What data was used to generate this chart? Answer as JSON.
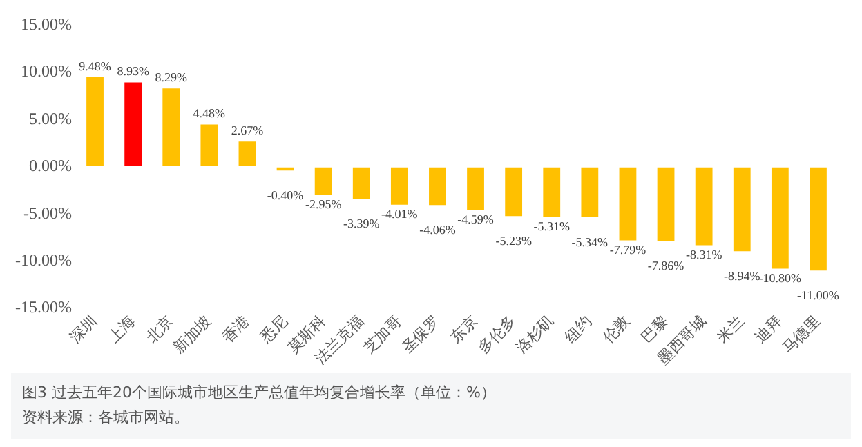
{
  "chart_data": {
    "type": "bar",
    "categories": [
      "深圳",
      "上海",
      "北京",
      "新加坡",
      "香港",
      "悉尼",
      "莫斯科",
      "法兰克福",
      "芝加哥",
      "圣保罗",
      "东京",
      "多伦多",
      "洛杉矶",
      "纽约",
      "伦敦",
      "巴黎",
      "墨西哥城",
      "米兰",
      "迪拜",
      "马德里"
    ],
    "values": [
      9.48,
      8.93,
      8.29,
      4.48,
      2.67,
      -0.4,
      -2.95,
      -3.39,
      -4.01,
      -4.06,
      -4.59,
      -5.23,
      -5.31,
      -5.34,
      -7.79,
      -7.86,
      -8.31,
      -8.94,
      -10.8,
      -11.0
    ],
    "colors": [
      "#ffc000",
      "#ff0000",
      "#ffc000",
      "#ffc000",
      "#ffc000",
      "#ffc000",
      "#ffc000",
      "#ffc000",
      "#ffc000",
      "#ffc000",
      "#ffc000",
      "#ffc000",
      "#ffc000",
      "#ffc000",
      "#ffc000",
      "#ffc000",
      "#ffc000",
      "#ffc000",
      "#ffc000",
      "#ffc000"
    ],
    "value_labels": [
      "9.48%",
      "8.93%",
      "8.29%",
      "4.48%",
      "2.67%",
      "-0.40%",
      "-2.95%",
      "-3.39%",
      "-4.01%",
      "-4.06%",
      "-4.59%",
      "-5.23%",
      "-5.31%",
      "-5.34%",
      "-7.79%",
      "-7.86%",
      "-8.31%",
      "-8.94%",
      "-10.80%",
      "-11.00%"
    ],
    "ylim": [
      -15,
      15
    ],
    "yticks": [
      {
        "value": -15,
        "label": "-15.00%"
      },
      {
        "value": -10,
        "label": "-10.00%"
      },
      {
        "value": -5,
        "label": "-5.00%"
      },
      {
        "value": 0,
        "label": "0.00%"
      },
      {
        "value": 5,
        "label": "5.00%"
      },
      {
        "value": 10,
        "label": "10.00%"
      },
      {
        "value": 15,
        "label": "15.00%"
      }
    ],
    "grid": false,
    "legend": false,
    "annotations": [
      "图3  过去五年20个国际城市地区生产总值年均复合增长率（单位：%）",
      "资料来源：各城市网站。"
    ]
  }
}
